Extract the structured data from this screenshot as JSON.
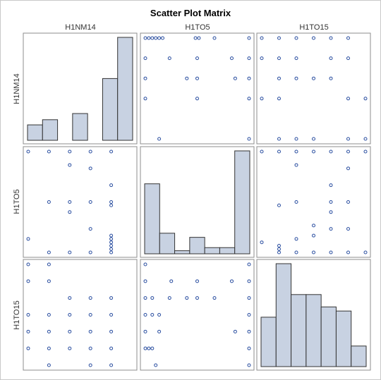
{
  "chart_data": {
    "type": "scatter",
    "title": "Scatter Plot Matrix",
    "variables": [
      "H1NM14",
      "H1TO5",
      "H1TO15"
    ],
    "colors": {
      "point": "#2a4ea0",
      "bar_fill": "#c8d2e2",
      "bar_stroke": "#333333",
      "panel_border": "#8c8c8c"
    },
    "ranges": {
      "H1NM14": [
        0,
        5
      ],
      "H1TO5": [
        0,
        6
      ],
      "H1TO15": [
        0,
        6
      ]
    },
    "histograms": {
      "H1NM14": {
        "bins": 7,
        "range": [
          0,
          5
        ],
        "heights": [
          0.15,
          0.2,
          0,
          0.26,
          0,
          0.6,
          1.0
        ]
      },
      "H1TO5": {
        "bins": 7,
        "range": [
          0,
          6
        ],
        "heights": [
          0.68,
          0.2,
          0.03,
          0.16,
          0.06,
          0.06,
          1.0
        ]
      },
      "H1TO15": {
        "bins": 7,
        "range": [
          0,
          6
        ],
        "heights": [
          0.48,
          1.0,
          0.7,
          0.7,
          0.58,
          0.54,
          0.2
        ]
      }
    },
    "pairs": [
      {
        "x": "H1TO5",
        "y": "H1NM14",
        "points": [
          [
            0,
            5
          ],
          [
            0.2,
            5
          ],
          [
            0.4,
            5
          ],
          [
            0.6,
            5
          ],
          [
            0.8,
            5
          ],
          [
            1.0,
            5
          ],
          [
            2.9,
            5
          ],
          [
            3.1,
            5
          ],
          [
            4,
            5
          ],
          [
            6,
            5
          ],
          [
            0,
            4
          ],
          [
            1.4,
            4
          ],
          [
            3,
            4
          ],
          [
            5,
            4
          ],
          [
            6,
            4
          ],
          [
            0,
            3
          ],
          [
            2.4,
            3
          ],
          [
            3,
            3
          ],
          [
            5.2,
            3
          ],
          [
            6,
            3
          ],
          [
            0,
            2
          ],
          [
            3,
            2
          ],
          [
            6,
            2
          ],
          [
            0.8,
            0
          ],
          [
            6,
            0
          ]
        ]
      },
      {
        "x": "H1TO15",
        "y": "H1NM14",
        "points": [
          [
            0,
            5
          ],
          [
            1,
            5
          ],
          [
            2,
            5
          ],
          [
            3,
            5
          ],
          [
            4,
            5
          ],
          [
            5,
            5
          ],
          [
            0,
            4
          ],
          [
            1,
            4
          ],
          [
            2,
            4
          ],
          [
            4,
            4
          ],
          [
            5,
            4
          ],
          [
            1,
            3
          ],
          [
            2,
            3
          ],
          [
            3,
            3
          ],
          [
            4,
            3
          ],
          [
            0,
            2
          ],
          [
            1,
            2
          ],
          [
            5,
            2
          ],
          [
            6,
            2
          ],
          [
            1,
            0
          ],
          [
            2,
            0
          ],
          [
            3,
            0
          ],
          [
            5,
            0
          ],
          [
            6,
            0
          ]
        ]
      },
      {
        "x": "H1NM14",
        "y": "H1TO5",
        "points": [
          [
            0,
            6
          ],
          [
            1,
            6
          ],
          [
            2,
            6
          ],
          [
            3,
            6
          ],
          [
            4,
            6
          ],
          [
            2,
            5.2
          ],
          [
            3,
            5
          ],
          [
            4,
            4
          ],
          [
            1,
            3
          ],
          [
            2,
            3
          ],
          [
            3,
            3
          ],
          [
            4,
            3
          ],
          [
            4,
            2.8
          ],
          [
            2,
            2.4
          ],
          [
            3,
            1.4
          ],
          [
            4,
            1
          ],
          [
            4,
            0.8
          ],
          [
            4,
            0.6
          ],
          [
            4,
            0.4
          ],
          [
            4,
            0.2
          ],
          [
            0,
            0.8
          ],
          [
            1,
            0
          ],
          [
            2,
            0
          ],
          [
            3,
            0
          ],
          [
            4,
            0
          ]
        ]
      },
      {
        "x": "H1TO15",
        "y": "H1TO5",
        "points": [
          [
            0,
            6
          ],
          [
            1,
            6
          ],
          [
            2,
            6
          ],
          [
            3,
            6
          ],
          [
            4,
            6
          ],
          [
            5,
            6
          ],
          [
            6,
            6
          ],
          [
            2,
            5.2
          ],
          [
            5,
            5
          ],
          [
            4,
            4
          ],
          [
            2,
            3
          ],
          [
            4,
            3
          ],
          [
            5,
            3
          ],
          [
            1,
            2.8
          ],
          [
            4,
            2.4
          ],
          [
            3,
            1.6
          ],
          [
            4,
            1.4
          ],
          [
            5,
            1.4
          ],
          [
            2,
            0.8
          ],
          [
            3,
            1
          ],
          [
            0,
            0.6
          ],
          [
            1,
            0.4
          ],
          [
            1,
            0.2
          ],
          [
            1,
            0
          ],
          [
            2,
            0
          ],
          [
            3,
            0
          ],
          [
            4,
            0
          ],
          [
            5,
            0
          ],
          [
            6,
            0
          ]
        ]
      },
      {
        "x": "H1NM14",
        "y": "H1TO15",
        "points": [
          [
            0,
            6
          ],
          [
            1,
            6
          ],
          [
            0,
            5
          ],
          [
            1,
            5
          ],
          [
            2,
            4
          ],
          [
            3,
            4
          ],
          [
            4,
            4
          ],
          [
            0,
            3
          ],
          [
            1,
            3
          ],
          [
            2,
            3
          ],
          [
            3,
            3
          ],
          [
            4,
            3
          ],
          [
            0,
            2
          ],
          [
            1,
            2
          ],
          [
            2,
            2
          ],
          [
            3,
            2
          ],
          [
            4,
            2
          ],
          [
            0,
            1
          ],
          [
            1,
            1
          ],
          [
            2,
            1
          ],
          [
            3,
            1
          ],
          [
            4,
            1
          ],
          [
            1,
            0
          ],
          [
            3,
            0
          ],
          [
            4,
            0
          ]
        ]
      },
      {
        "x": "H1TO5",
        "y": "H1TO15",
        "points": [
          [
            0,
            6
          ],
          [
            6,
            6
          ],
          [
            0,
            5
          ],
          [
            1.5,
            5
          ],
          [
            3,
            5
          ],
          [
            5,
            5
          ],
          [
            6,
            5
          ],
          [
            0,
            4
          ],
          [
            0.4,
            4
          ],
          [
            1.4,
            4
          ],
          [
            2.4,
            4
          ],
          [
            3,
            4
          ],
          [
            4,
            4
          ],
          [
            6,
            4
          ],
          [
            0,
            3
          ],
          [
            0.4,
            3
          ],
          [
            0.8,
            3
          ],
          [
            6,
            3
          ],
          [
            0,
            2
          ],
          [
            0.8,
            2
          ],
          [
            5.2,
            2
          ],
          [
            6,
            2
          ],
          [
            0,
            1
          ],
          [
            0.2,
            1
          ],
          [
            0.4,
            1
          ],
          [
            6,
            1
          ],
          [
            0.6,
            0
          ],
          [
            6,
            0
          ]
        ]
      }
    ]
  }
}
